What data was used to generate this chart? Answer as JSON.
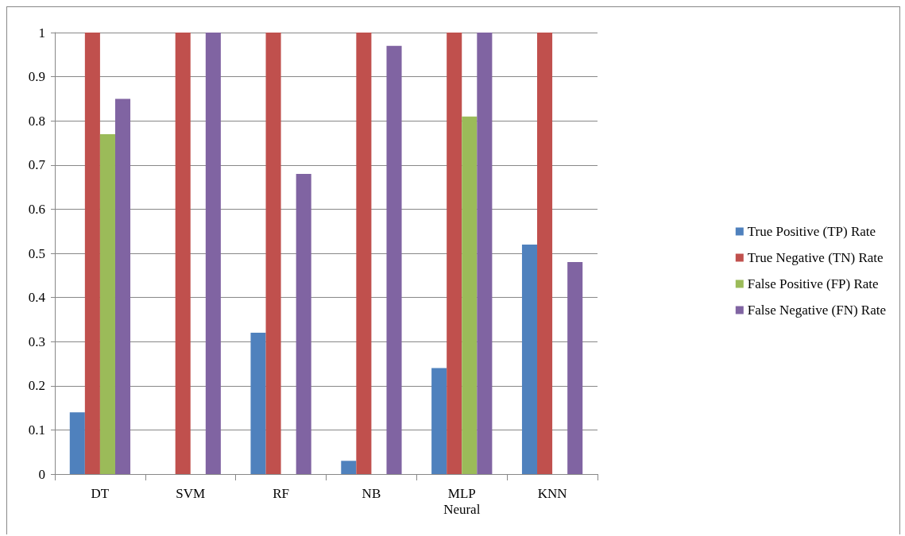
{
  "chart_data": {
    "type": "bar",
    "categories": [
      "DT",
      "SVM",
      "RF",
      "NB",
      "MLP\nNeural",
      "KNN"
    ],
    "series": [
      {
        "name": "True Positive (TP) Rate",
        "color": "#4f81bd",
        "values": [
          0.14,
          0,
          0.32,
          0.03,
          0.24,
          0.52
        ]
      },
      {
        "name": "True Negative (TN) Rate",
        "color": "#c0504d",
        "values": [
          1,
          1,
          1,
          1,
          1,
          1
        ]
      },
      {
        "name": "False Positive (FP) Rate",
        "color": "#9bbb59",
        "values": [
          0.77,
          0,
          0,
          0,
          0.81,
          0
        ]
      },
      {
        "name": "False Negative (FN) Rate",
        "color": "#8064a2",
        "values": [
          0.85,
          1,
          0.68,
          0.97,
          1,
          0.48
        ]
      }
    ],
    "ylim": [
      0,
      1
    ],
    "yticks": [
      0,
      0.1,
      0.2,
      0.3,
      0.4,
      0.5,
      0.6,
      0.7,
      0.8,
      0.9,
      1
    ],
    "grid": "y",
    "legend": "right"
  }
}
